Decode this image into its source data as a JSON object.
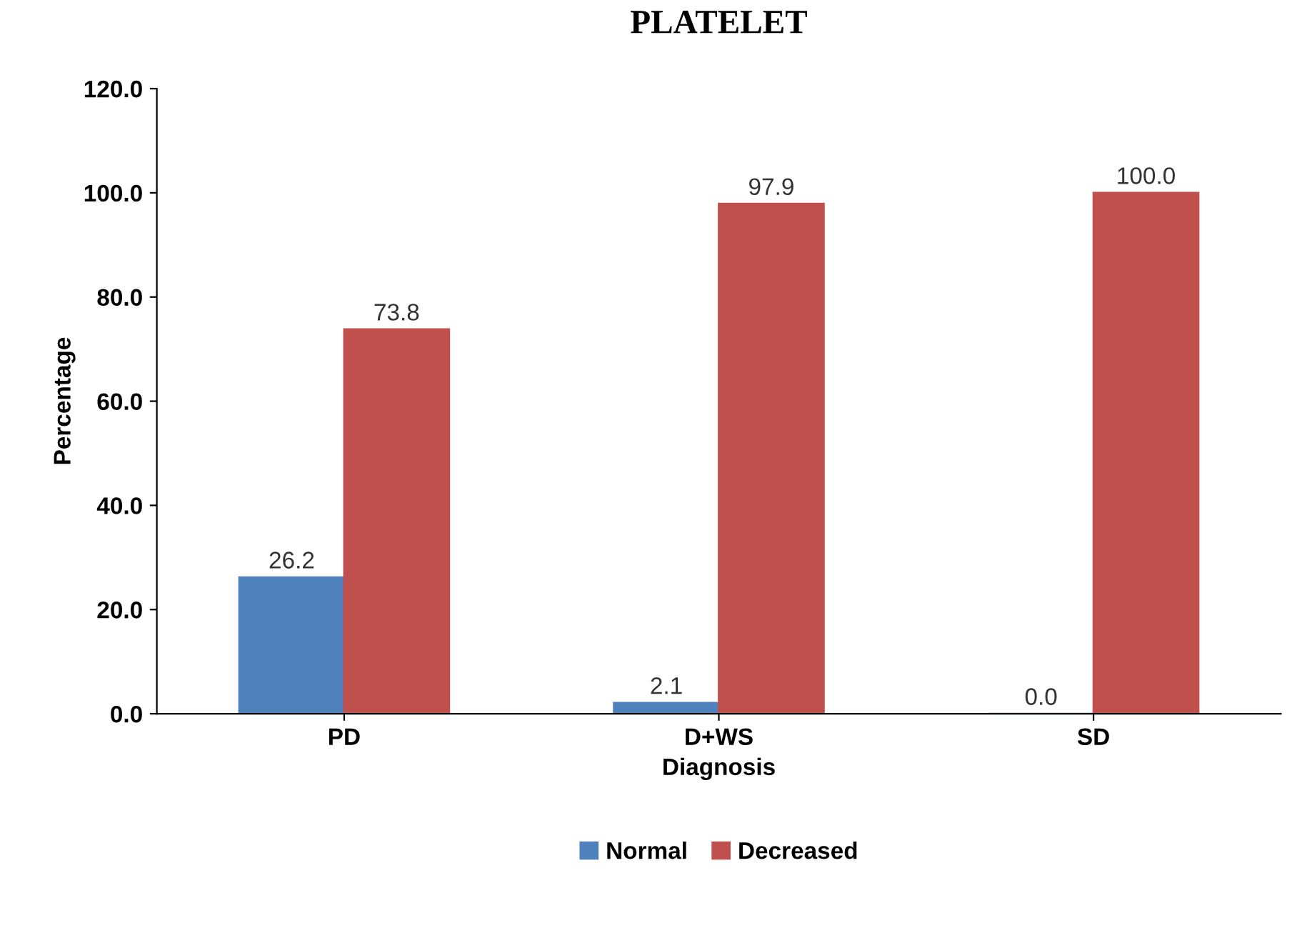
{
  "chart_data": {
    "type": "bar",
    "title": "PLATELET",
    "xlabel": "Diagnosis",
    "ylabel": "Percentage",
    "categories": [
      "PD",
      "D+WS",
      "SD"
    ],
    "series": [
      {
        "name": "Normal",
        "color": "#4f81bd",
        "values": [
          26.2,
          2.1,
          0.0
        ],
        "value_labels": [
          "26.2",
          "2.1",
          "0.0"
        ]
      },
      {
        "name": "Decreased",
        "color": "#c0504d",
        "values": [
          73.8,
          97.9,
          100.0
        ],
        "value_labels": [
          "73.8",
          "97.9",
          "100.0"
        ]
      }
    ],
    "ylim": [
      0,
      120
    ],
    "yticks": [
      {
        "value": 0,
        "label": "0.0"
      },
      {
        "value": 20,
        "label": "20.0"
      },
      {
        "value": 40,
        "label": "40.0"
      },
      {
        "value": 60,
        "label": "60.0"
      },
      {
        "value": 80,
        "label": "80.0"
      },
      {
        "value": 100,
        "label": "100.0"
      },
      {
        "value": 120,
        "label": "120.0"
      }
    ],
    "grid": false,
    "legend": "bottom"
  }
}
